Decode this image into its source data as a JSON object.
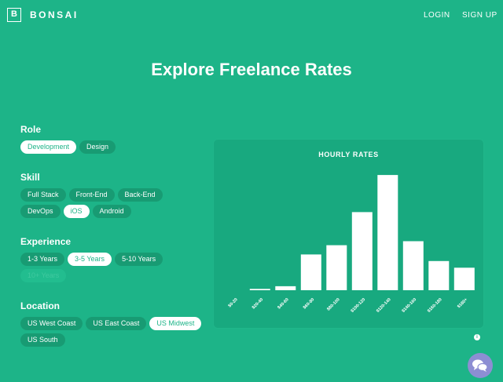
{
  "header": {
    "logo_letter": "B",
    "brand": "BONSAI",
    "login_label": "LOGIN",
    "signup_label": "SIGN UP"
  },
  "page_title": "Explore Freelance Rates",
  "filters": {
    "role": {
      "label": "Role",
      "options": [
        {
          "label": "Development",
          "selected": true
        },
        {
          "label": "Design",
          "selected": false
        }
      ]
    },
    "skill": {
      "label": "Skill",
      "row1": [
        {
          "label": "Full Stack",
          "selected": false
        },
        {
          "label": "Front-End",
          "selected": false
        },
        {
          "label": "Back-End",
          "selected": false
        }
      ],
      "row2": [
        {
          "label": "DevOps",
          "selected": false
        },
        {
          "label": "iOS",
          "selected": true
        },
        {
          "label": "Android",
          "selected": false
        }
      ]
    },
    "experience": {
      "label": "Experience",
      "row1": [
        {
          "label": "1-3 Years",
          "selected": false
        },
        {
          "label": "3-5 Years",
          "selected": true
        },
        {
          "label": "5-10 Years",
          "selected": false
        }
      ],
      "row2": [
        {
          "label": "10+ Years",
          "selected": false,
          "disabled": true
        }
      ]
    },
    "location": {
      "label": "Location",
      "row1": [
        {
          "label": "US West Coast",
          "selected": false
        },
        {
          "label": "US East Coast",
          "selected": false
        },
        {
          "label": "US Midwest",
          "selected": true
        }
      ],
      "row2": [
        {
          "label": "US South",
          "selected": false
        }
      ]
    }
  },
  "chart_data": {
    "type": "bar",
    "title": "HOURLY RATES",
    "categories": [
      "$0-20",
      "$20-40",
      "$40-60",
      "$60-80",
      "$80-100",
      "$100-120",
      "$120-140",
      "$140-160",
      "$160-180",
      "$180+"
    ],
    "values": [
      0,
      1,
      3,
      27,
      34,
      59,
      87,
      37,
      22,
      17
    ],
    "ylim": [
      0,
      90
    ],
    "grid": false,
    "bar_color": "#ffffff"
  },
  "colors": {
    "background": "#1db488",
    "card": "#18a97f",
    "chip": "#189b73",
    "chat": "#8d8ed3"
  },
  "icons": {
    "info": "info-icon",
    "chat": "chat-icon"
  }
}
